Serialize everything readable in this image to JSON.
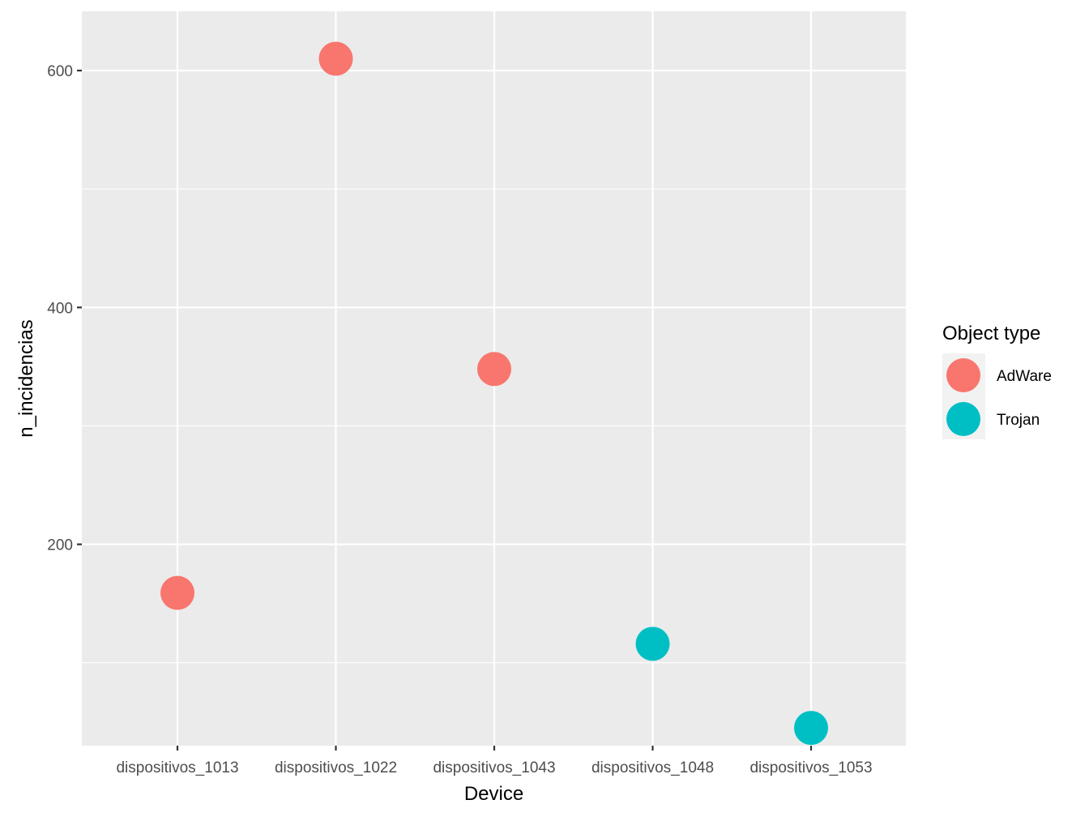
{
  "chart_data": {
    "type": "scatter",
    "title": "",
    "xlabel": "Device",
    "ylabel": "n_incidencias",
    "categories": [
      "dispositivos_1013",
      "dispositivos_1022",
      "dispositivos_1043",
      "dispositivos_1048",
      "dispositivos_1053"
    ],
    "y_ticks": [
      200,
      400,
      600
    ],
    "y_tick_labels": [
      "200",
      "400",
      "600"
    ],
    "ylim": [
      30,
      650
    ],
    "grid": true,
    "legend": {
      "title": "Object type",
      "position": "right",
      "entries": [
        {
          "label": "AdWare",
          "color": "#F8766D"
        },
        {
          "label": "Trojan",
          "color": "#00BFC4"
        }
      ]
    },
    "points": [
      {
        "x": "dispositivos_1013",
        "y": 159,
        "group": "AdWare"
      },
      {
        "x": "dispositivos_1022",
        "y": 610,
        "group": "AdWare"
      },
      {
        "x": "dispositivos_1043",
        "y": 348,
        "group": "AdWare"
      },
      {
        "x": "dispositivos_1048",
        "y": 116,
        "group": "Trojan"
      },
      {
        "x": "dispositivos_1053",
        "y": 45,
        "group": "Trojan"
      }
    ],
    "colors": {
      "panel_background": "#EBEBEB",
      "grid": "#FFFFFF",
      "AdWare": "#F8766D",
      "Trojan": "#00BFC4"
    }
  }
}
